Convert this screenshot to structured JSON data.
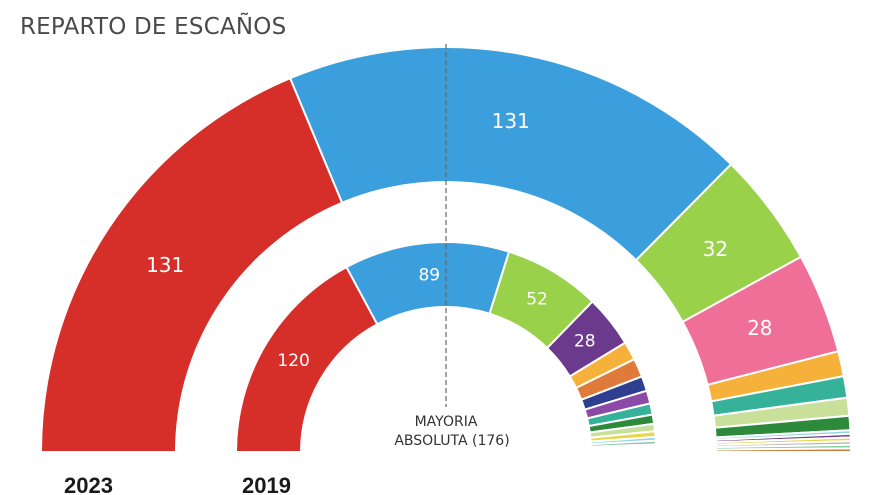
{
  "title": "REPARTO DE ESCAÑOS",
  "majority": {
    "line1": "MAYORIA",
    "line2": "ABSOLUTA (176)",
    "value": 176
  },
  "chart_data": [
    {
      "type": "pie",
      "subtype": "parliament-hemicycle",
      "name": "outer",
      "year_label": "2023",
      "total": 350,
      "segments": [
        {
          "value": 131,
          "label": "131",
          "color": "#d62f2a"
        },
        {
          "value": 131,
          "label": "131",
          "color": "#3c9fdd"
        },
        {
          "value": 32,
          "label": "32",
          "color": "#9ad14b"
        },
        {
          "value": 28,
          "label": "28",
          "color": "#ef6f99"
        },
        {
          "value": 7,
          "label": "",
          "color": "#f5b13a"
        },
        {
          "value": 6,
          "label": "",
          "color": "#35b299"
        },
        {
          "value": 5,
          "label": "",
          "color": "#c9e09a"
        },
        {
          "value": 4,
          "label": "",
          "color": "#2d8a3a"
        },
        {
          "value": 1,
          "label": "",
          "color": "#8fd3e6"
        },
        {
          "value": 1,
          "label": "",
          "color": "#6b3a8c"
        },
        {
          "value": 1,
          "label": "",
          "color": "#e6d84a"
        },
        {
          "value": 1,
          "label": "",
          "color": "#bbbbbb"
        },
        {
          "value": 1,
          "label": "",
          "color": "#85c9a5"
        },
        {
          "value": 1,
          "label": "",
          "color": "#c97f3a"
        }
      ]
    },
    {
      "type": "pie",
      "subtype": "parliament-hemicycle",
      "name": "inner",
      "year_label": "2019",
      "total": 350,
      "segments": [
        {
          "value": 120,
          "label": "120",
          "color": "#d62f2a"
        },
        {
          "value": 89,
          "label": "89",
          "color": "#3c9fdd"
        },
        {
          "value": 52,
          "label": "52",
          "color": "#9ad14b"
        },
        {
          "value": 28,
          "label": "28",
          "color": "#6b3a8c"
        },
        {
          "value": 10,
          "label": "",
          "color": "#f5b13a"
        },
        {
          "value": 10,
          "label": "",
          "color": "#e07a3a"
        },
        {
          "value": 8,
          "label": "",
          "color": "#2f3f8f"
        },
        {
          "value": 7,
          "label": "",
          "color": "#8b4aa8"
        },
        {
          "value": 6,
          "label": "",
          "color": "#35b299"
        },
        {
          "value": 5,
          "label": "",
          "color": "#2d8a3a"
        },
        {
          "value": 4,
          "label": "",
          "color": "#c9e09a"
        },
        {
          "value": 3,
          "label": "",
          "color": "#e6d84a"
        },
        {
          "value": 2,
          "label": "",
          "color": "#8fd3e6"
        },
        {
          "value": 2,
          "label": "",
          "color": "#85c9a5"
        },
        {
          "value": 1,
          "label": "",
          "color": "#bbbbbb"
        },
        {
          "value": 1,
          "label": "",
          "color": "#c97f3a"
        },
        {
          "value": 1,
          "label": "",
          "color": "#4a8fd6"
        },
        {
          "value": 1,
          "label": "",
          "color": "#f08bb0"
        }
      ]
    }
  ]
}
